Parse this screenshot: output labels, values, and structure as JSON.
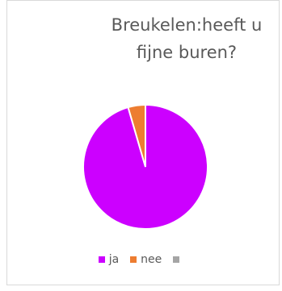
{
  "chart_data": {
    "type": "pie",
    "title": "Breukelen:heeft u fijne buren?",
    "categories": [
      "ja",
      "nee",
      ""
    ],
    "values": [
      95.5,
      4.5,
      0
    ],
    "colors": [
      "#cc00ff",
      "#ed7d31",
      "#a5a5a5"
    ],
    "legend_position": "bottom",
    "start_angle": 0
  }
}
